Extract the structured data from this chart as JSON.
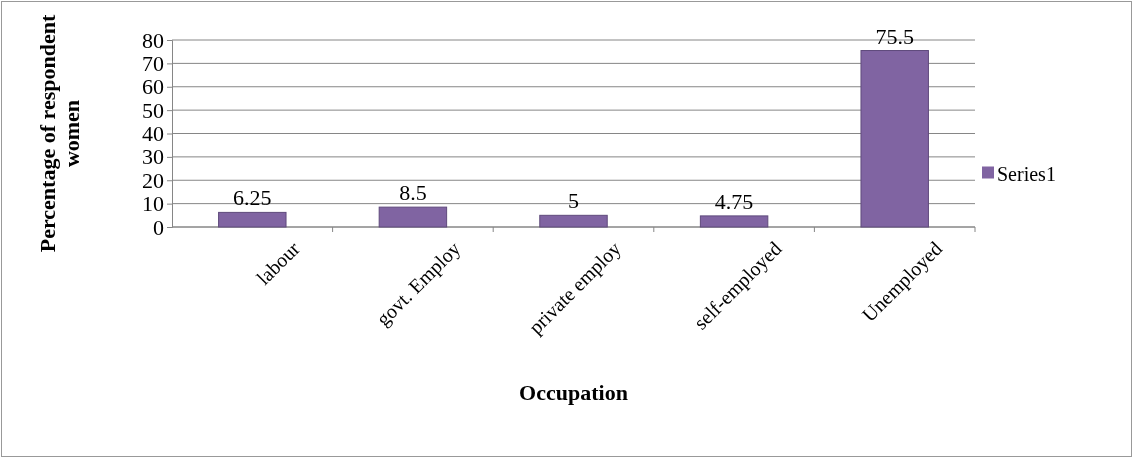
{
  "chart_data": {
    "type": "bar",
    "xlabel": "Occupation",
    "ylabel": "Percentage of respondent women",
    "categories": [
      "labour",
      "govt. Employ",
      "private employ",
      "self-employed",
      "Unemployed"
    ],
    "series": [
      {
        "name": "Series1",
        "color": "#8064a2",
        "values": [
          6.25,
          8.5,
          5,
          4.75,
          75.5
        ]
      }
    ],
    "ylim": [
      0,
      80
    ],
    "yticks": [
      0,
      10,
      20,
      30,
      40,
      50,
      60,
      70,
      80
    ],
    "grid": "y",
    "legend": "right",
    "data_labels": true
  }
}
